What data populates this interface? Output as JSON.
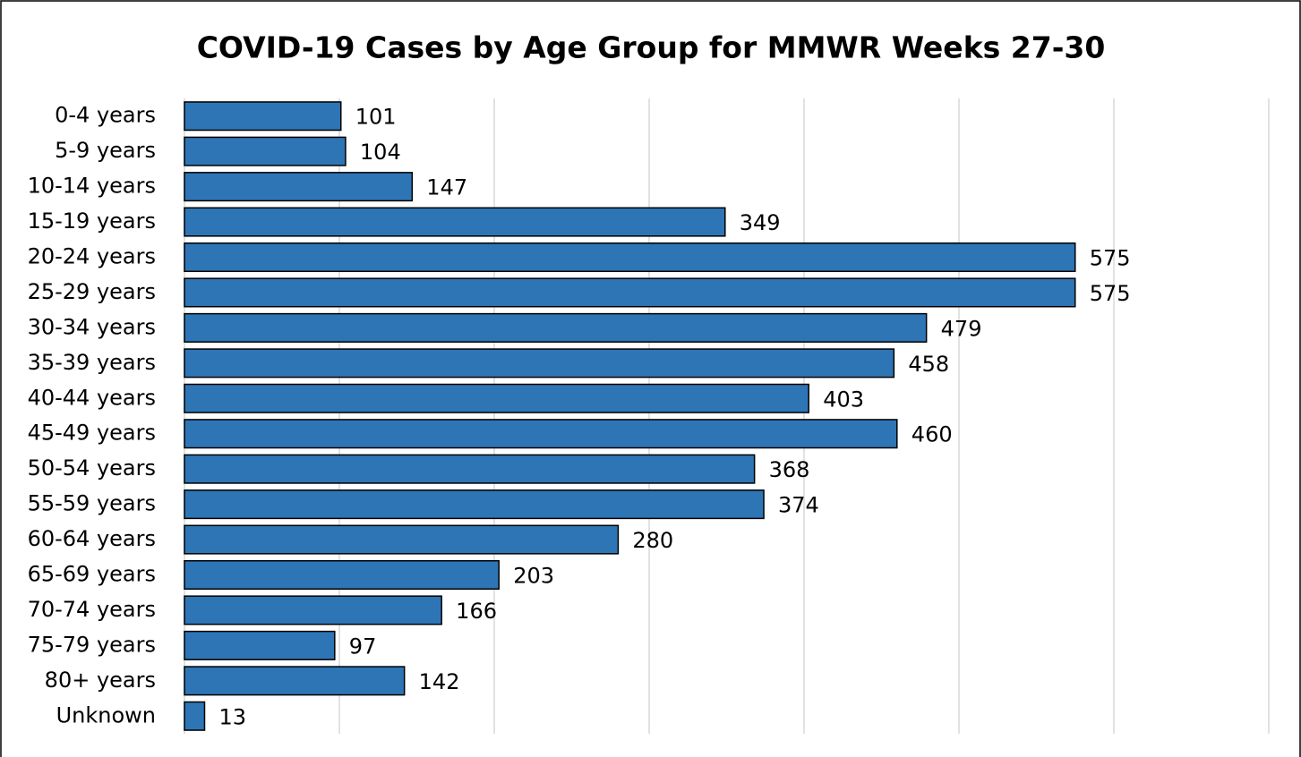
{
  "chart_data": {
    "type": "bar",
    "orientation": "horizontal",
    "title": "COVID-19 Cases by Age Group for MMWR Weeks 27-30",
    "categories": [
      "0-4 years",
      "5-9 years",
      "10-14 years",
      "15-19 years",
      "20-24 years",
      "25-29 years",
      "30-34 years",
      "35-39 years",
      "40-44 years",
      "45-49 years",
      "50-54 years",
      "55-59 years",
      "60-64 years",
      "65-69 years",
      "70-74 years",
      "75-79 years",
      "80+ years",
      "Unknown"
    ],
    "values": [
      101,
      104,
      147,
      349,
      575,
      575,
      479,
      458,
      403,
      460,
      368,
      374,
      280,
      203,
      166,
      97,
      142,
      13
    ],
    "color": "#2e75b6",
    "xlim": [
      0,
      700
    ],
    "xticks": [
      0,
      100,
      200,
      300,
      400,
      500,
      600,
      700
    ],
    "grid": true
  }
}
